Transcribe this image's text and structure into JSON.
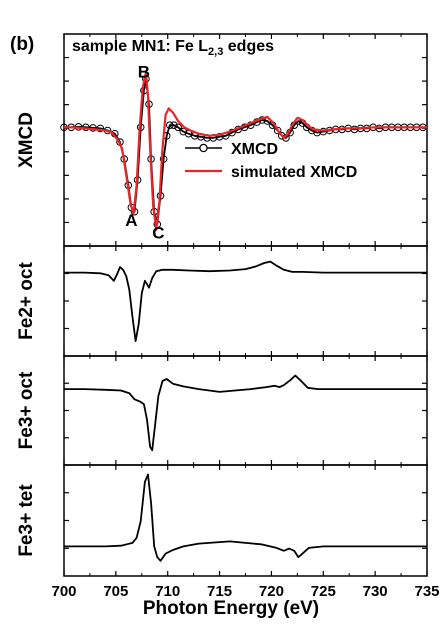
{
  "chart_data": {
    "type": "line",
    "panel_label": "(b)",
    "title": "sample MN1: Fe L",
    "title_subscript": "2,3",
    "title_suffix": " edges",
    "xlabel": "Photon Energy (eV)",
    "xlim": [
      700,
      735
    ],
    "xticks": [
      700,
      705,
      710,
      715,
      720,
      725,
      730,
      735
    ],
    "panels": [
      {
        "ylabel": "XMCD",
        "ylim": [
          -1.05,
          0.62
        ],
        "series": [
          {
            "name": "XMCD",
            "style": "markers-line",
            "color": "#000000",
            "points": [
              [
                700.0,
                0.0
              ],
              [
                700.7,
                0.0
              ],
              [
                701.4,
                0.005
              ],
              [
                702.1,
                0.0
              ],
              [
                702.8,
                -0.005
              ],
              [
                703.5,
                -0.01
              ],
              [
                704.2,
                -0.03
              ],
              [
                704.9,
                -0.06
              ],
              [
                705.4,
                -0.14
              ],
              [
                705.8,
                -0.3
              ],
              [
                706.2,
                -0.55
              ],
              [
                706.5,
                -0.76
              ],
              [
                706.8,
                -0.8
              ],
              [
                707.1,
                -0.5
              ],
              [
                707.4,
                0.0
              ],
              [
                707.7,
                0.35
              ],
              [
                707.9,
                0.46
              ],
              [
                708.2,
                0.22
              ],
              [
                708.4,
                -0.3
              ],
              [
                708.7,
                -0.8
              ],
              [
                709.0,
                -0.92
              ],
              [
                709.3,
                -0.65
              ],
              [
                709.6,
                -0.3
              ],
              [
                709.9,
                -0.08
              ],
              [
                710.2,
                0.02
              ],
              [
                710.6,
                0.02
              ],
              [
                711.0,
                0.0
              ],
              [
                711.5,
                -0.04
              ],
              [
                712.0,
                -0.06
              ],
              [
                712.6,
                -0.08
              ],
              [
                713.2,
                -0.09
              ],
              [
                713.8,
                -0.1
              ],
              [
                714.4,
                -0.1
              ],
              [
                715.0,
                -0.09
              ],
              [
                715.6,
                -0.08
              ],
              [
                716.2,
                -0.05
              ],
              [
                716.8,
                -0.02
              ],
              [
                717.4,
                0.0
              ],
              [
                718.0,
                0.02
              ],
              [
                718.6,
                0.05
              ],
              [
                719.1,
                0.07
              ],
              [
                719.6,
                0.06
              ],
              [
                720.1,
                0.02
              ],
              [
                720.6,
                -0.03
              ],
              [
                721.0,
                -0.08
              ],
              [
                721.4,
                -0.1
              ],
              [
                721.8,
                -0.05
              ],
              [
                722.2,
                0.02
              ],
              [
                722.6,
                0.06
              ],
              [
                723.0,
                0.04
              ],
              [
                723.4,
                0.0
              ],
              [
                723.9,
                -0.03
              ],
              [
                724.4,
                -0.05
              ],
              [
                725.0,
                -0.04
              ],
              [
                725.6,
                -0.03
              ],
              [
                726.2,
                -0.02
              ],
              [
                726.8,
                -0.02
              ],
              [
                727.4,
                -0.01
              ],
              [
                728.0,
                -0.02
              ],
              [
                728.6,
                -0.01
              ],
              [
                729.2,
                -0.01
              ],
              [
                729.8,
                0.0
              ],
              [
                730.4,
                -0.01
              ],
              [
                731.0,
                0.0
              ],
              [
                731.6,
                0.0
              ],
              [
                732.2,
                0.0
              ],
              [
                732.8,
                0.0
              ],
              [
                733.4,
                0.0
              ],
              [
                734.0,
                0.0
              ],
              [
                734.6,
                0.0
              ]
            ]
          },
          {
            "name": "simulated XMCD",
            "style": "line",
            "color": "#e8262b",
            "points": [
              [
                700.0,
                0.0
              ],
              [
                701.0,
                0.0
              ],
              [
                702.0,
                -0.01
              ],
              [
                703.0,
                -0.02
              ],
              [
                704.0,
                -0.03
              ],
              [
                704.6,
                -0.05
              ],
              [
                705.2,
                -0.12
              ],
              [
                705.6,
                -0.2
              ],
              [
                706.0,
                -0.45
              ],
              [
                706.4,
                -0.72
              ],
              [
                706.7,
                -0.82
              ],
              [
                707.0,
                -0.55
              ],
              [
                707.3,
                0.0
              ],
              [
                707.6,
                0.38
              ],
              [
                707.9,
                0.52
              ],
              [
                708.1,
                0.3
              ],
              [
                708.3,
                -0.2
              ],
              [
                708.6,
                -0.75
              ],
              [
                708.9,
                -0.97
              ],
              [
                709.2,
                -0.7
              ],
              [
                709.5,
                -0.2
              ],
              [
                709.8,
                0.12
              ],
              [
                710.1,
                0.18
              ],
              [
                710.5,
                0.14
              ],
              [
                711.0,
                0.06
              ],
              [
                711.6,
                0.0
              ],
              [
                712.2,
                -0.03
              ],
              [
                713.0,
                -0.06
              ],
              [
                714.0,
                -0.08
              ],
              [
                715.0,
                -0.07
              ],
              [
                716.0,
                -0.04
              ],
              [
                717.0,
                0.0
              ],
              [
                718.0,
                0.04
              ],
              [
                719.0,
                0.08
              ],
              [
                719.6,
                0.1
              ],
              [
                720.2,
                0.04
              ],
              [
                720.7,
                -0.04
              ],
              [
                721.2,
                -0.1
              ],
              [
                721.6,
                -0.06
              ],
              [
                722.0,
                0.02
              ],
              [
                722.5,
                0.09
              ],
              [
                723.0,
                0.07
              ],
              [
                723.5,
                0.02
              ],
              [
                724.0,
                -0.02
              ],
              [
                725.0,
                -0.03
              ],
              [
                726.0,
                -0.02
              ],
              [
                727.0,
                -0.01
              ],
              [
                728.0,
                -0.01
              ],
              [
                730.0,
                0.0
              ],
              [
                732.0,
                0.0
              ],
              [
                735.0,
                0.0
              ]
            ]
          }
        ],
        "annotations": [
          {
            "text": "A",
            "x": 706.5,
            "y": -0.88
          },
          {
            "text": "B",
            "x": 707.7,
            "y": 0.53
          },
          {
            "text": "C",
            "x": 709.1,
            "y": -1.0
          }
        ],
        "legend_position": "center-right"
      },
      {
        "ylabel": "Fe2+ oct",
        "ylim": [
          -1.1,
          0.3
        ],
        "series": [
          {
            "name": "Fe2+ oct",
            "style": "line",
            "color": "#000000",
            "points": [
              [
                700.0,
                0.0
              ],
              [
                702.0,
                0.0
              ],
              [
                703.5,
                -0.01
              ],
              [
                704.3,
                -0.04
              ],
              [
                704.8,
                -0.12
              ],
              [
                705.1,
                -0.03
              ],
              [
                705.4,
                0.08
              ],
              [
                705.7,
                0.04
              ],
              [
                706.0,
                -0.05
              ],
              [
                706.3,
                -0.25
              ],
              [
                706.6,
                -0.65
              ],
              [
                706.9,
                -1.0
              ],
              [
                707.2,
                -0.75
              ],
              [
                707.5,
                -0.3
              ],
              [
                707.8,
                -0.12
              ],
              [
                708.0,
                -0.17
              ],
              [
                708.2,
                -0.22
              ],
              [
                708.5,
                -0.08
              ],
              [
                708.9,
                0.02
              ],
              [
                709.5,
                0.04
              ],
              [
                710.5,
                0.04
              ],
              [
                712.0,
                0.03
              ],
              [
                714.0,
                0.02
              ],
              [
                716.0,
                0.03
              ],
              [
                717.5,
                0.05
              ],
              [
                718.5,
                0.09
              ],
              [
                719.3,
                0.14
              ],
              [
                719.9,
                0.16
              ],
              [
                720.5,
                0.1
              ],
              [
                721.2,
                0.04
              ],
              [
                722.0,
                0.01
              ],
              [
                723.0,
                0.01
              ],
              [
                725.0,
                0.0
              ],
              [
                730.0,
                0.0
              ],
              [
                735.0,
                0.0
              ]
            ]
          }
        ]
      },
      {
        "ylabel": "Fe3+ oct",
        "ylim": [
          -1.0,
          0.4
        ],
        "series": [
          {
            "name": "Fe3+ oct",
            "style": "line",
            "color": "#000000",
            "points": [
              [
                700.0,
                0.0
              ],
              [
                702.0,
                0.0
              ],
              [
                704.0,
                -0.01
              ],
              [
                705.5,
                -0.02
              ],
              [
                706.3,
                -0.06
              ],
              [
                706.8,
                -0.15
              ],
              [
                707.3,
                -0.18
              ],
              [
                707.7,
                -0.22
              ],
              [
                708.0,
                -0.45
              ],
              [
                708.3,
                -0.85
              ],
              [
                708.5,
                -0.9
              ],
              [
                708.8,
                -0.5
              ],
              [
                709.1,
                -0.1
              ],
              [
                709.5,
                0.12
              ],
              [
                709.9,
                0.15
              ],
              [
                710.5,
                0.08
              ],
              [
                711.5,
                0.04
              ],
              [
                713.0,
                0.0
              ],
              [
                715.0,
                -0.04
              ],
              [
                716.5,
                -0.02
              ],
              [
                718.0,
                0.0
              ],
              [
                719.5,
                0.03
              ],
              [
                720.3,
                0.05
              ],
              [
                720.8,
                0.03
              ],
              [
                721.2,
                0.06
              ],
              [
                721.8,
                0.13
              ],
              [
                722.3,
                0.2
              ],
              [
                722.8,
                0.13
              ],
              [
                723.5,
                0.02
              ],
              [
                724.5,
                0.0
              ],
              [
                727.0,
                0.0
              ],
              [
                735.0,
                0.0
              ]
            ]
          }
        ]
      },
      {
        "ylabel": "Fe3+ tet",
        "ylim": [
          -0.3,
          1.05
        ],
        "series": [
          {
            "name": "Fe3+ tet",
            "style": "line",
            "color": "#000000",
            "points": [
              [
                700.0,
                0.0
              ],
              [
                702.0,
                0.0
              ],
              [
                704.0,
                0.0
              ],
              [
                705.5,
                0.01
              ],
              [
                706.6,
                0.05
              ],
              [
                707.0,
                0.12
              ],
              [
                707.4,
                0.35
              ],
              [
                707.8,
                0.9
              ],
              [
                708.1,
                1.0
              ],
              [
                708.4,
                0.6
              ],
              [
                708.7,
                0.0
              ],
              [
                709.0,
                -0.15
              ],
              [
                709.3,
                -0.2
              ],
              [
                709.8,
                -0.1
              ],
              [
                710.5,
                -0.05
              ],
              [
                711.5,
                0.0
              ],
              [
                713.0,
                0.04
              ],
              [
                715.0,
                0.06
              ],
              [
                716.0,
                0.07
              ],
              [
                717.5,
                0.05
              ],
              [
                719.0,
                0.03
              ],
              [
                720.5,
                -0.02
              ],
              [
                721.2,
                -0.06
              ],
              [
                721.7,
                -0.03
              ],
              [
                722.2,
                -0.06
              ],
              [
                722.6,
                -0.15
              ],
              [
                723.0,
                -0.1
              ],
              [
                723.6,
                -0.02
              ],
              [
                725.0,
                0.0
              ],
              [
                730.0,
                0.0
              ],
              [
                735.0,
                0.0
              ]
            ]
          }
        ]
      }
    ]
  }
}
